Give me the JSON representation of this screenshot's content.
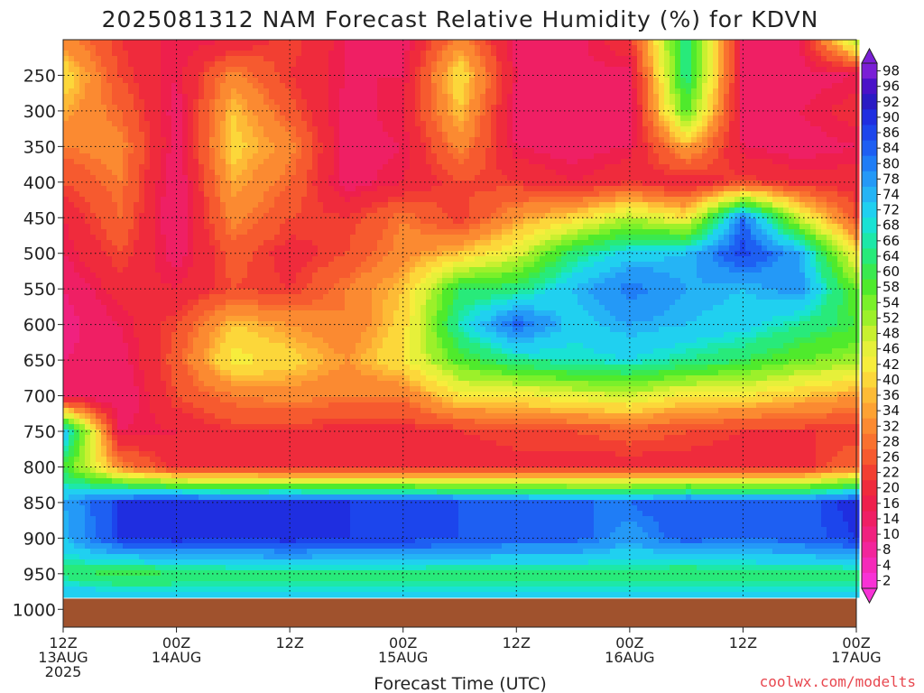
{
  "chart_data": {
    "type": "heatmap",
    "title": "2025081312 NAM Forecast Relative Humidity (%) for KDVN",
    "xlabel": "Forecast Time (UTC)",
    "ylabel": "",
    "credit": "coolwx.com/modelts",
    "y_scale": "pressure (hPa), decreasing upward",
    "ylim": [
      1025,
      200
    ],
    "y_ticks": [
      250,
      300,
      350,
      400,
      450,
      500,
      550,
      600,
      650,
      700,
      750,
      800,
      850,
      900,
      950,
      1000
    ],
    "x_ticks": [
      {
        "hour": 0,
        "line1": "12Z",
        "line2": "13AUG",
        "line3": "2025"
      },
      {
        "hour": 12,
        "line1": "00Z",
        "line2": "14AUG",
        "line3": ""
      },
      {
        "hour": 24,
        "line1": "12Z",
        "line2": "",
        "line3": ""
      },
      {
        "hour": 36,
        "line1": "00Z",
        "line2": "15AUG",
        "line3": ""
      },
      {
        "hour": 48,
        "line1": "12Z",
        "line2": "",
        "line3": ""
      },
      {
        "hour": 60,
        "line1": "00Z",
        "line2": "16AUG",
        "line3": ""
      },
      {
        "hour": 72,
        "line1": "12Z",
        "line2": "",
        "line3": ""
      },
      {
        "hour": 84,
        "line1": "00Z",
        "line2": "17AUG",
        "line3": ""
      }
    ],
    "xlim": [
      0,
      84
    ],
    "ground_level_hpa": 985,
    "colorbar": {
      "levels": [
        98,
        96,
        92,
        90,
        86,
        84,
        80,
        78,
        74,
        72,
        68,
        66,
        64,
        60,
        58,
        54,
        52,
        48,
        46,
        42,
        40,
        36,
        34,
        32,
        28,
        26,
        22,
        20,
        16,
        14,
        10,
        8,
        4,
        2
      ],
      "colors": [
        "#7a1fd6",
        "#4a12c8",
        "#2a1bc4",
        "#1f2ee0",
        "#1c45ec",
        "#1e5ff2",
        "#1f7df6",
        "#2499f7",
        "#25b4f5",
        "#20d0f0",
        "#19e2d4",
        "#1de8a8",
        "#28ea7a",
        "#3ae94f",
        "#4fea2c",
        "#7af02a",
        "#9cf02a",
        "#c8f030",
        "#e6f03a",
        "#f7ed3c",
        "#fcd73a",
        "#fdbb36",
        "#fda233",
        "#fb8a31",
        "#f9712f",
        "#f65a2f",
        "#f23f32",
        "#ef2b3c",
        "#ee1f4c",
        "#ef1f64",
        "#f0217f",
        "#f2259b",
        "#f52ab9",
        "#f832d6"
      ]
    },
    "x": [
      0,
      6,
      12,
      18,
      24,
      30,
      36,
      42,
      48,
      54,
      60,
      66,
      72,
      78,
      84
    ],
    "y": [
      200,
      250,
      300,
      350,
      400,
      450,
      500,
      550,
      600,
      650,
      700,
      750,
      800,
      850,
      900,
      950,
      985
    ],
    "z": [
      [
        30,
        20,
        14,
        16,
        22,
        14,
        12,
        30,
        12,
        12,
        20,
        64,
        12,
        14,
        50
      ],
      [
        40,
        22,
        14,
        30,
        20,
        14,
        14,
        40,
        14,
        14,
        12,
        64,
        12,
        12,
        14
      ],
      [
        34,
        26,
        12,
        36,
        24,
        12,
        16,
        36,
        12,
        14,
        12,
        56,
        12,
        14,
        18
      ],
      [
        28,
        30,
        12,
        38,
        30,
        12,
        14,
        30,
        14,
        12,
        14,
        34,
        14,
        12,
        14
      ],
      [
        22,
        28,
        10,
        34,
        26,
        12,
        16,
        22,
        20,
        16,
        20,
        16,
        22,
        18,
        18
      ],
      [
        16,
        26,
        10,
        30,
        22,
        20,
        28,
        20,
        32,
        38,
        48,
        40,
        80,
        46,
        22
      ],
      [
        14,
        22,
        12,
        24,
        18,
        22,
        30,
        36,
        44,
        62,
        70,
        72,
        86,
        74,
        40
      ],
      [
        10,
        18,
        16,
        22,
        20,
        28,
        36,
        60,
        62,
        72,
        80,
        74,
        72,
        76,
        54
      ],
      [
        8,
        14,
        22,
        36,
        32,
        28,
        38,
        66,
        82,
        70,
        74,
        72,
        70,
        64,
        58
      ],
      [
        10,
        12,
        24,
        42,
        38,
        32,
        40,
        56,
        64,
        66,
        68,
        64,
        60,
        54,
        50
      ],
      [
        12,
        10,
        22,
        28,
        30,
        28,
        28,
        40,
        40,
        44,
        46,
        40,
        40,
        36,
        32
      ],
      [
        74,
        14,
        16,
        20,
        20,
        18,
        18,
        20,
        22,
        22,
        24,
        22,
        20,
        20,
        20
      ],
      [
        58,
        30,
        18,
        18,
        16,
        16,
        16,
        16,
        18,
        18,
        18,
        18,
        18,
        18,
        26
      ],
      [
        74,
        86,
        90,
        86,
        88,
        86,
        86,
        84,
        82,
        80,
        80,
        84,
        82,
        82,
        88
      ],
      [
        72,
        86,
        88,
        86,
        88,
        86,
        86,
        84,
        82,
        82,
        76,
        82,
        80,
        82,
        86
      ],
      [
        62,
        58,
        60,
        62,
        62,
        62,
        62,
        62,
        62,
        62,
        62,
        60,
        62,
        62,
        62
      ],
      [
        74,
        72,
        70,
        70,
        70,
        70,
        70,
        70,
        70,
        70,
        70,
        70,
        70,
        70,
        70
      ]
    ]
  }
}
